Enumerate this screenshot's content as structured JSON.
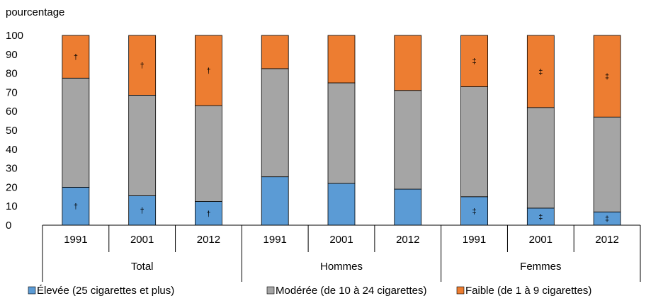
{
  "chart_data": {
    "type": "bar",
    "stacked": true,
    "ylabel": "pourcentage",
    "ylim": [
      0,
      100
    ],
    "yticks": [
      "0",
      "10",
      "20",
      "30",
      "40",
      "50",
      "60",
      "70",
      "80",
      "90",
      "100"
    ],
    "grid": false,
    "legend_position": "bottom",
    "groups": [
      {
        "label": "Total",
        "years": [
          "1991",
          "2001",
          "2012"
        ]
      },
      {
        "label": "Hommes",
        "years": [
          "1991",
          "2001",
          "2012"
        ]
      },
      {
        "label": "Femmes",
        "years": [
          "1991",
          "2001",
          "2012"
        ]
      }
    ],
    "series": [
      {
        "name": "Élevée (25 cigarettes et plus)",
        "color": "#5b9bd5",
        "values": [
          20,
          15.5,
          12.5,
          25.5,
          22,
          19,
          15,
          9,
          7
        ],
        "markers": [
          "†",
          "†",
          "†",
          "",
          "",
          "",
          "‡",
          "‡",
          "‡"
        ]
      },
      {
        "name": "Modérée (de 10 à 24 cigarettes)",
        "color": "#a5a5a5",
        "values": [
          57.5,
          53,
          50.5,
          57,
          53,
          52,
          58,
          53,
          50
        ],
        "markers": [
          "",
          "",
          "",
          "",
          "",
          "",
          "",
          "",
          ""
        ]
      },
      {
        "name": "Faible (de 1 à 9 cigarettes)",
        "color": "#ed7d31",
        "values": [
          22.5,
          31.5,
          37,
          17.5,
          25,
          29,
          27,
          38,
          43
        ],
        "markers": [
          "†",
          "†",
          "†",
          "",
          "",
          "",
          "‡",
          "‡",
          "‡"
        ]
      }
    ]
  }
}
